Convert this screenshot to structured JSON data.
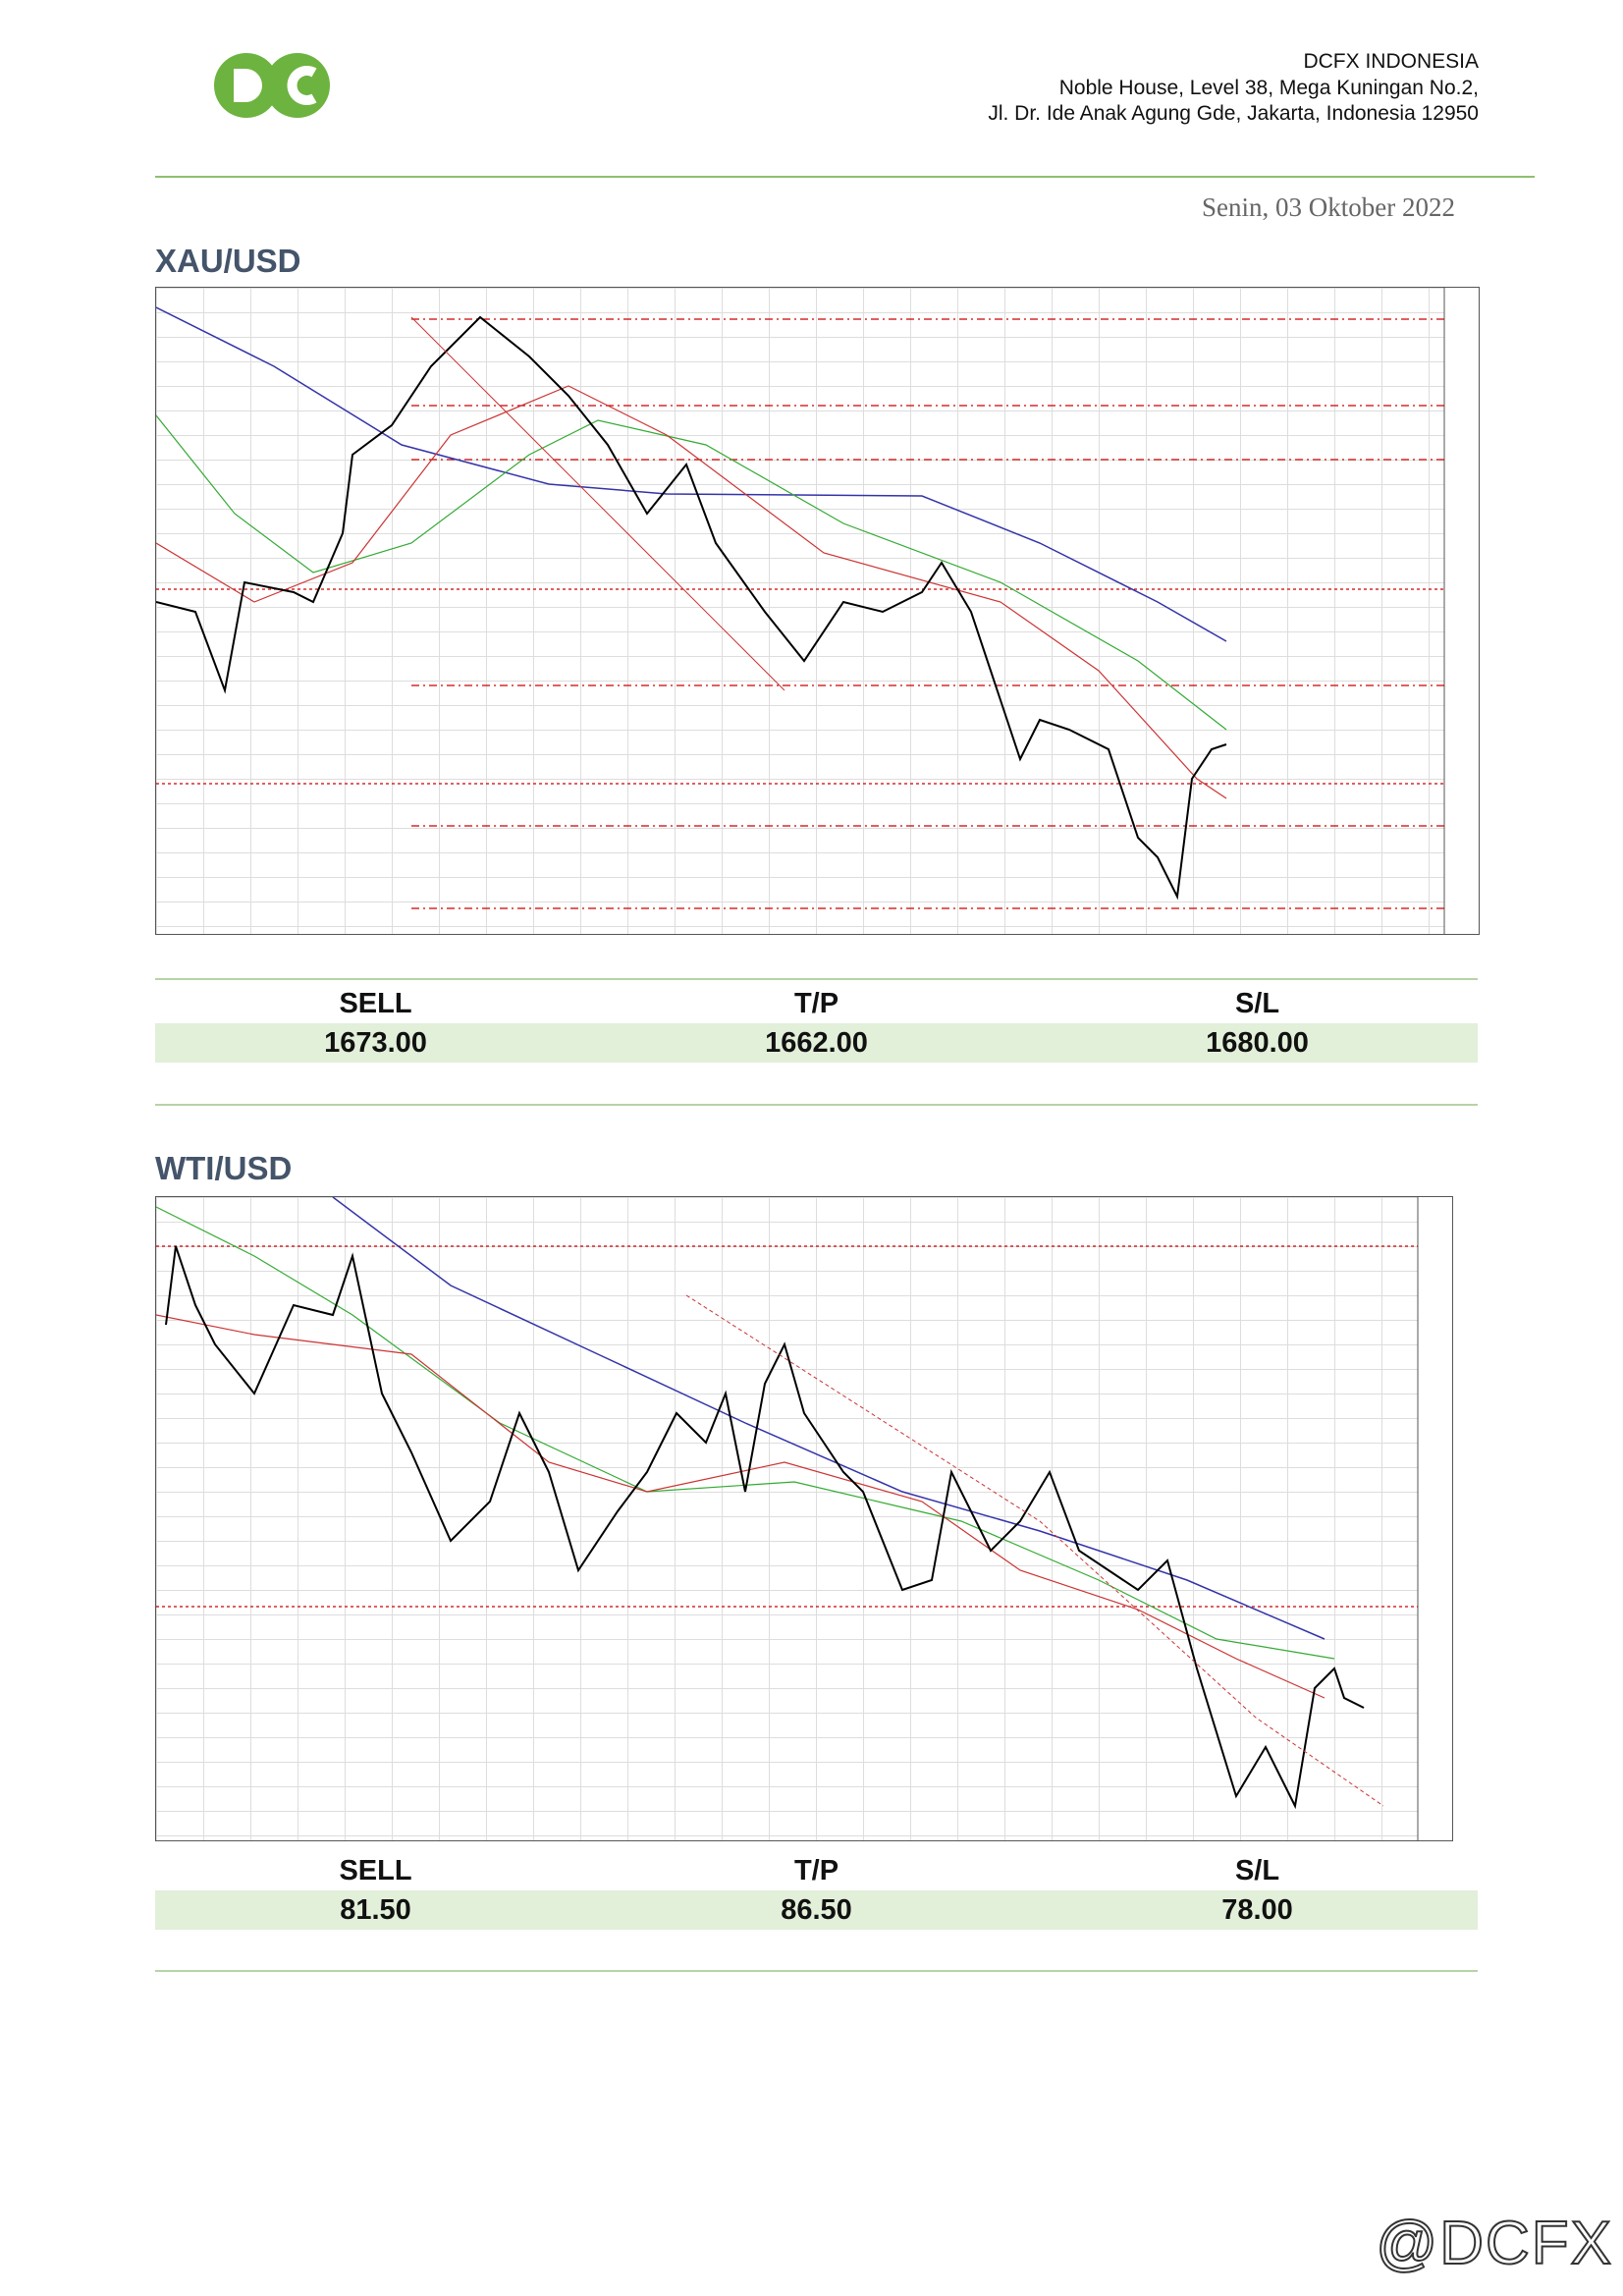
{
  "header": {
    "company": "DCFX INDONESIA",
    "address_line1": "Noble House, Level 38, Mega Kuningan No.2,",
    "address_line2": "Jl. Dr. Ide Anak Agung Gde, Jakarta, Indonesia 12950",
    "date": "Senin, 03 Oktober 2022"
  },
  "sections": [
    {
      "title": "XAU/USD",
      "table": {
        "headers": [
          "SELL",
          "T/P",
          "S/L"
        ],
        "values": [
          "1673.00",
          "1662.00",
          "1680.00"
        ]
      }
    },
    {
      "title": "WTI/USD",
      "table": {
        "headers": [
          "SELL",
          "T/P",
          "S/L"
        ],
        "values": [
          "81.50",
          "86.50",
          "78.00"
        ]
      }
    }
  ],
  "footer": {
    "watermark": "@DCFX"
  }
}
